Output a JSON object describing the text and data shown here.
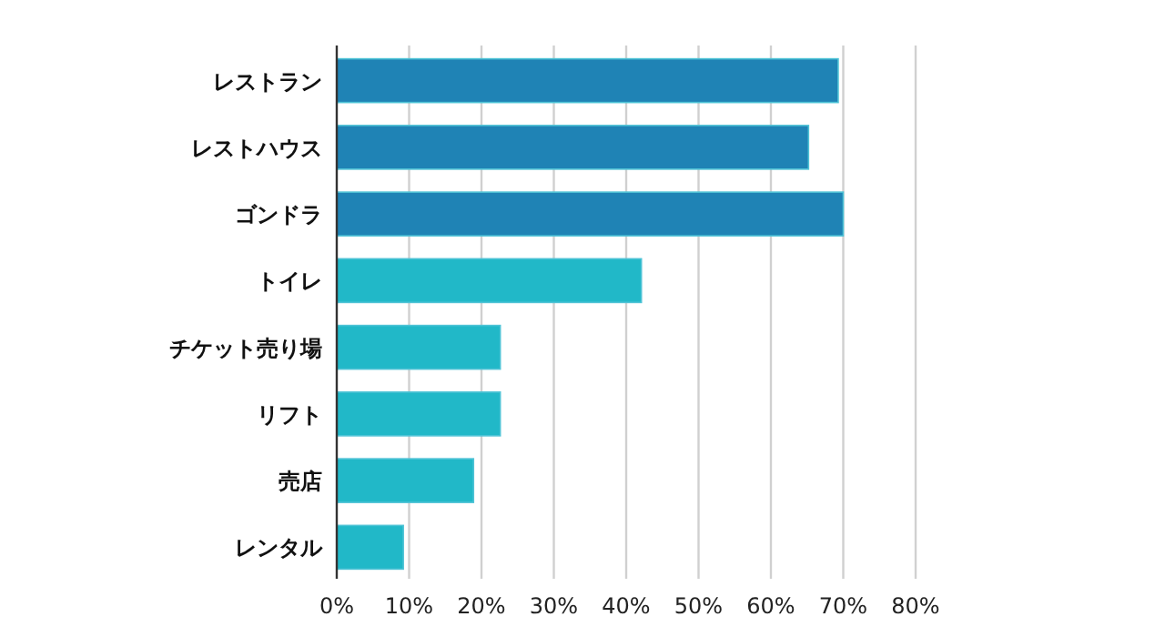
{
  "chart_data": {
    "type": "bar",
    "orientation": "horizontal",
    "categories": [
      "レストラン",
      "レストハウス",
      "ゴンドラ",
      "トイレ",
      "チケット売り場",
      "リフト",
      "売店",
      "レンタル"
    ],
    "values": [
      69.3,
      65.2,
      70,
      42.1,
      22.6,
      22.6,
      18.9,
      9.2
    ],
    "colors": [
      "#1f83b5",
      "#1f83b5",
      "#1f83b5",
      "#21b8c8",
      "#21b8c8",
      "#21b8c8",
      "#21b8c8",
      "#21b8c8"
    ],
    "xlim": [
      0,
      80
    ],
    "xticks": [
      {
        "value": 0,
        "label": "0%"
      },
      {
        "value": 10,
        "label": "10%"
      },
      {
        "value": 20,
        "label": "20%"
      },
      {
        "value": 30,
        "label": "30%"
      },
      {
        "value": 40,
        "label": "40%"
      },
      {
        "value": 50,
        "label": "50%"
      },
      {
        "value": 60,
        "label": "60%"
      },
      {
        "value": 70,
        "label": "70%"
      },
      {
        "value": 80,
        "label": "80%"
      }
    ],
    "grid": "x"
  }
}
